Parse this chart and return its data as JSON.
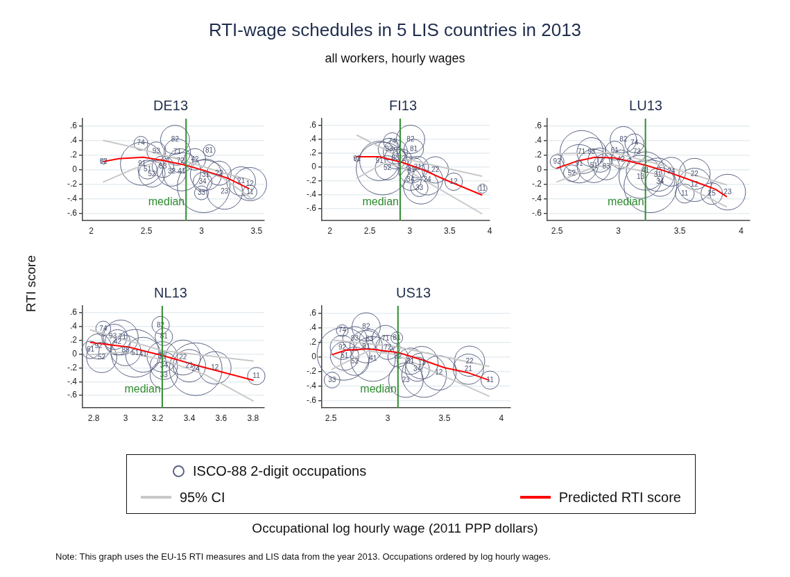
{
  "chart_data": [
    {
      "type": "bubble",
      "title": "DE13",
      "legend": "bottom",
      "grid": "y",
      "xlim": [
        1.92,
        3.57
      ],
      "xticks": [
        2,
        2.5,
        3,
        3.5
      ],
      "ylim": [
        -0.7,
        0.7
      ],
      "yticks": [
        {
          "value": -0.6,
          "label": "-.6"
        },
        {
          "value": -0.4,
          "label": "-.4"
        },
        {
          "value": -0.2,
          "label": "-.2"
        },
        {
          "value": 0,
          "label": "0"
        },
        {
          "value": 0.2,
          "label": ".2"
        },
        {
          "value": 0.4,
          "label": ".4"
        },
        {
          "value": 0.6,
          "label": ".6"
        }
      ],
      "ref_lines": [
        {
          "axis": "x",
          "value": 2.86,
          "label": "median",
          "color": "#2e8b2e"
        }
      ],
      "annotations": [
        {
          "text": "92",
          "x": 2.11,
          "y": 0.11
        },
        {
          "text": "74",
          "x": 2.45,
          "y": 0.36
        },
        {
          "text": "82",
          "x": 2.76,
          "y": 0.41
        },
        {
          "text": "93",
          "x": 2.59,
          "y": 0.25
        },
        {
          "text": "71",
          "x": 2.78,
          "y": 0.24
        },
        {
          "text": "81",
          "x": 3.07,
          "y": 0.26
        },
        {
          "text": "72",
          "x": 2.81,
          "y": 0.12
        },
        {
          "text": "42",
          "x": 2.94,
          "y": 0.14
        },
        {
          "text": "91",
          "x": 2.46,
          "y": 0.08
        },
        {
          "text": "51",
          "x": 2.51,
          "y": 0
        },
        {
          "text": "52",
          "x": 2.55,
          "y": -0.06
        },
        {
          "text": "83",
          "x": 2.65,
          "y": 0.04
        },
        {
          "text": "32",
          "x": 2.73,
          "y": -0.03
        },
        {
          "text": "41",
          "x": 2.82,
          "y": -0.03
        },
        {
          "text": "31",
          "x": 3.04,
          "y": -0.07
        },
        {
          "text": "34",
          "x": 3.01,
          "y": -0.17
        },
        {
          "text": "33",
          "x": 3.0,
          "y": -0.32
        },
        {
          "text": "22",
          "x": 3.16,
          "y": -0.05
        },
        {
          "text": "21",
          "x": 3.36,
          "y": -0.16
        },
        {
          "text": "23",
          "x": 3.21,
          "y": -0.3
        },
        {
          "text": "12",
          "x": 3.44,
          "y": -0.2
        },
        {
          "text": "11",
          "x": 3.44,
          "y": -0.31
        }
      ],
      "series": [
        {
          "type": "bubble",
          "name": "ISCO-88 2-digit occupations",
          "color": "#5b6382",
          "x": [
            2.11,
            2.45,
            2.76,
            2.59,
            2.78,
            3.07,
            2.81,
            2.94,
            2.46,
            2.51,
            2.55,
            2.65,
            2.73,
            2.82,
            3.04,
            3.01,
            3.0,
            3.16,
            3.36,
            3.21,
            3.44,
            3.44,
            3.02
          ],
          "values": [
            0.11,
            0.36,
            0.41,
            0.25,
            0.24,
            0.26,
            0.12,
            0.14,
            0.08,
            0,
            -0.06,
            0.04,
            -0.03,
            -0.03,
            -0.07,
            -0.17,
            -0.32,
            -0.05,
            -0.16,
            -0.3,
            -0.2,
            -0.31,
            -0.23
          ],
          "sizes": [
            0.01,
            0.07,
            0.3,
            0.13,
            0.25,
            0.05,
            0.21,
            0.17,
            0.67,
            0.13,
            0.25,
            0.17,
            0.3,
            0.53,
            0.35,
            0.13,
            0.07,
            0.21,
            0.3,
            0.46,
            0.4,
            0.07,
            1
          ]
        },
        {
          "type": "line",
          "name": "95% CI",
          "color": "#c8c8c8",
          "x": [
            2.11,
            2.4,
            2.65,
            2.9,
            3.2,
            3.44
          ],
          "values": [
            -0.17,
            0.02,
            0.12,
            0.05,
            -0.12,
            -0.38
          ]
        },
        {
          "type": "line",
          "color": "#c8c8c8",
          "x": [
            2.11,
            2.4,
            2.7,
            3.0,
            3.2,
            3.44
          ],
          "values": [
            0.4,
            0.3,
            0.18,
            0.05,
            -0.05,
            -0.14
          ]
        },
        {
          "type": "line",
          "name": "Predicted RTI score",
          "color": "#ff0000",
          "x": [
            2.11,
            2.25,
            2.47,
            2.63,
            2.83,
            3.04,
            3.24,
            3.43
          ],
          "values": [
            0.11,
            0.15,
            0.17,
            0.13,
            0.07,
            -0.02,
            -0.12,
            -0.26
          ]
        }
      ]
    },
    {
      "type": "bubble",
      "title": "FI13",
      "grid": "y",
      "xlim": [
        1.9,
        4.0
      ],
      "xticks": [
        2,
        2.5,
        3,
        3.5,
        4
      ],
      "ylim": [
        -0.77,
        0.7
      ],
      "yticks": [
        {
          "value": -0.6,
          "label": "-.6"
        },
        {
          "value": -0.4,
          "label": "-.4"
        },
        {
          "value": -0.2,
          "label": "-.2"
        },
        {
          "value": 0,
          "label": "0"
        },
        {
          "value": 0.2,
          "label": ".2"
        },
        {
          "value": 0.4,
          "label": ".4"
        },
        {
          "value": 0.6,
          "label": ".6"
        }
      ],
      "ref_lines": [
        {
          "axis": "x",
          "value": 2.88,
          "label": "median",
          "color": "#2e8b2e"
        }
      ],
      "annotations": [
        {
          "text": "92",
          "x": 2.34,
          "y": 0.12
        },
        {
          "text": "74",
          "x": 2.78,
          "y": 0.37
        },
        {
          "text": "82",
          "x": 3.01,
          "y": 0.4
        },
        {
          "text": "81",
          "x": 3.05,
          "y": 0.26
        },
        {
          "text": "93",
          "x": 2.74,
          "y": 0.26
        },
        {
          "text": "71",
          "x": 2.82,
          "y": 0.22
        },
        {
          "text": "91",
          "x": 2.62,
          "y": 0.09
        },
        {
          "text": "52",
          "x": 2.72,
          "y": -0.01
        },
        {
          "text": "83",
          "x": 2.82,
          "y": 0.13
        },
        {
          "text": "72",
          "x": 2.9,
          "y": 0.12
        },
        {
          "text": "41",
          "x": 3.02,
          "y": -0.04
        },
        {
          "text": "31",
          "x": 3.1,
          "y": 0
        },
        {
          "text": "34",
          "x": 3.01,
          "y": -0.18
        },
        {
          "text": "33",
          "x": 3.12,
          "y": -0.3
        },
        {
          "text": "22",
          "x": 3.32,
          "y": -0.04
        },
        {
          "text": "24",
          "x": 3.22,
          "y": -0.18
        },
        {
          "text": "12",
          "x": 3.55,
          "y": -0.21
        },
        {
          "text": "11",
          "x": 3.91,
          "y": -0.31
        }
      ],
      "series": [
        {
          "type": "bubble",
          "color": "#5b6382",
          "x": [
            2.34,
            2.78,
            3.01,
            3.05,
            2.74,
            2.82,
            2.62,
            2.72,
            2.82,
            2.66,
            2.9,
            3.02,
            3.1,
            3.01,
            3.12,
            3.32,
            3.22,
            3.14,
            3.55,
            3.91
          ],
          "values": [
            0.12,
            0.37,
            0.4,
            0.26,
            0.26,
            0.22,
            0.09,
            -0.01,
            0.13,
            -0.02,
            0.12,
            -0.04,
            0,
            -0.18,
            -0.3,
            -0.04,
            -0.18,
            -0.28,
            -0.21,
            -0.31
          ],
          "sizes": [
            0.01,
            0.11,
            0.29,
            0.14,
            0.17,
            0.21,
            0.56,
            0.21,
            0.17,
            1,
            0.14,
            0.25,
            0.17,
            0.17,
            0.11,
            0.25,
            0.34,
            0.44,
            0.11,
            0.03
          ]
        },
        {
          "type": "line",
          "color": "#c8c8c8",
          "x": [
            2.34,
            2.68,
            2.9,
            3.9
          ],
          "values": [
            -0.16,
            0.06,
            0,
            -0.67
          ]
        },
        {
          "type": "line",
          "color": "#c8c8c8",
          "x": [
            2.34,
            2.9,
            3.9
          ],
          "values": [
            0.46,
            0.13,
            -0.13
          ]
        },
        {
          "type": "line",
          "color": "#ff0000",
          "x": [
            2.34,
            2.62,
            2.9,
            3.17,
            3.44,
            3.9
          ],
          "values": [
            0.15,
            0.15,
            0.07,
            -0.04,
            -0.18,
            -0.4
          ]
        }
      ]
    },
    {
      "type": "bubble",
      "title": "LU13",
      "grid": "y",
      "xlim": [
        2.42,
        4.07
      ],
      "xticks": [
        2.5,
        3,
        3.5,
        4
      ],
      "ylim": [
        -0.7,
        0.7
      ],
      "yticks": [
        {
          "value": -0.6,
          "label": "-.6"
        },
        {
          "value": -0.4,
          "label": "-.4"
        },
        {
          "value": -0.2,
          "label": "-.2"
        },
        {
          "value": 0,
          "label": "0"
        },
        {
          "value": 0.2,
          "label": ".2"
        },
        {
          "value": 0.4,
          "label": ".4"
        },
        {
          "value": 0.6,
          "label": ".6"
        }
      ],
      "ref_lines": [
        {
          "axis": "x",
          "value": 3.22,
          "label": "median",
          "color": "#2e8b2e"
        }
      ],
      "annotations": [
        {
          "text": "92",
          "x": 2.5,
          "y": 0.11
        },
        {
          "text": "52",
          "x": 2.62,
          "y": -0.05
        },
        {
          "text": "91",
          "x": 2.68,
          "y": 0.08
        },
        {
          "text": "71",
          "x": 2.7,
          "y": 0.24
        },
        {
          "text": "93",
          "x": 2.78,
          "y": 0.24
        },
        {
          "text": "51",
          "x": 2.8,
          "y": 0.05
        },
        {
          "text": "83",
          "x": 2.9,
          "y": 0.04
        },
        {
          "text": "72",
          "x": 2.85,
          "y": 0.13
        },
        {
          "text": "61",
          "x": 2.97,
          "y": 0.26
        },
        {
          "text": "42",
          "x": 3.02,
          "y": 0.14
        },
        {
          "text": "82",
          "x": 3.04,
          "y": 0.41
        },
        {
          "text": "74",
          "x": 3.13,
          "y": 0.36
        },
        {
          "text": "73",
          "x": 3.15,
          "y": 0.24
        },
        {
          "text": "13",
          "x": 3.18,
          "y": -0.1
        },
        {
          "text": "41",
          "x": 3.22,
          "y": -0.02
        },
        {
          "text": "31",
          "x": 3.32,
          "y": -0.07
        },
        {
          "text": "34",
          "x": 3.34,
          "y": -0.17
        },
        {
          "text": "24",
          "x": 3.43,
          "y": -0.03
        },
        {
          "text": "22",
          "x": 3.62,
          "y": -0.06
        },
        {
          "text": "12",
          "x": 3.62,
          "y": -0.21
        },
        {
          "text": "11",
          "x": 3.54,
          "y": -0.33
        },
        {
          "text": "25",
          "x": 3.76,
          "y": -0.33
        },
        {
          "text": "23",
          "x": 3.89,
          "y": -0.31
        }
      ],
      "series": [
        {
          "type": "bubble",
          "color": "#5b6382",
          "x": [
            2.5,
            2.62,
            2.68,
            2.7,
            2.78,
            2.8,
            2.9,
            2.85,
            2.97,
            3.02,
            3.04,
            3.13,
            3.15,
            3.18,
            3.22,
            3.32,
            3.34,
            3.43,
            3.26,
            3.62,
            3.62,
            3.54,
            3.76,
            3.89
          ],
          "values": [
            0.11,
            -0.05,
            0.08,
            0.24,
            0.24,
            0.05,
            0.04,
            0.13,
            0.26,
            0.14,
            0.41,
            0.36,
            0.24,
            -0.1,
            -0.02,
            -0.07,
            -0.17,
            -0.03,
            -0.23,
            -0.06,
            -0.21,
            -0.33,
            -0.33,
            -0.31
          ],
          "sizes": [
            0.07,
            0.1,
            0.53,
            0.67,
            0.3,
            0.4,
            0.25,
            0.21,
            0.13,
            0.13,
            0.25,
            0.13,
            0.13,
            0.67,
            0.53,
            0.4,
            0.3,
            0.3,
            1,
            0.35,
            0.4,
            0.13,
            0.17,
            0.46
          ]
        },
        {
          "type": "line",
          "color": "#c8c8c8",
          "x": [
            2.5,
            2.81,
            2.97,
            3.38,
            3.88
          ],
          "values": [
            -0.17,
            0.04,
            0.06,
            -0.09,
            -0.51
          ]
        },
        {
          "type": "line",
          "color": "#c8c8c8",
          "x": [
            2.5,
            2.97,
            3.38,
            3.88
          ],
          "values": [
            0.22,
            0.23,
            0.05,
            -0.21
          ]
        },
        {
          "type": "line",
          "color": "#ff0000",
          "x": [
            2.5,
            2.67,
            2.81,
            2.97,
            3.1,
            3.22,
            3.38,
            3.58,
            3.79,
            3.88
          ],
          "values": [
            0.02,
            0.12,
            0.17,
            0.16,
            0.11,
            0.06,
            -0.02,
            -0.14,
            -0.27,
            -0.37
          ]
        }
      ]
    },
    {
      "type": "bubble",
      "title": "NL13",
      "grid": "y",
      "xlim": [
        2.73,
        3.87
      ],
      "xticks": [
        2.8,
        3,
        3.2,
        3.4,
        3.6,
        3.8
      ],
      "ylim": [
        -0.78,
        0.7
      ],
      "yticks": [
        {
          "value": -0.6,
          "label": "-.6"
        },
        {
          "value": -0.4,
          "label": "-.4"
        },
        {
          "value": -0.2,
          "label": "-.2"
        },
        {
          "value": 0,
          "label": "0"
        },
        {
          "value": 0.2,
          "label": ".2"
        },
        {
          "value": 0.4,
          "label": ".4"
        },
        {
          "value": 0.6,
          "label": ".6"
        }
      ],
      "ref_lines": [
        {
          "axis": "x",
          "value": 3.23,
          "label": "median",
          "color": "#2e8b2e"
        }
      ],
      "annotations": [
        {
          "text": "61",
          "x": 2.78,
          "y": 0.06
        },
        {
          "text": "74",
          "x": 2.86,
          "y": 0.37
        },
        {
          "text": "92",
          "x": 2.83,
          "y": 0.11
        },
        {
          "text": "52",
          "x": 2.85,
          "y": -0.05
        },
        {
          "text": "93",
          "x": 2.92,
          "y": 0.25
        },
        {
          "text": "71",
          "x": 2.98,
          "y": 0.24
        },
        {
          "text": "42",
          "x": 2.95,
          "y": 0.17
        },
        {
          "text": "83",
          "x": 3.0,
          "y": 0.05
        },
        {
          "text": "51",
          "x": 3.06,
          "y": 0.01
        },
        {
          "text": "41",
          "x": 3.11,
          "y": -0.01
        },
        {
          "text": "82",
          "x": 3.22,
          "y": 0.42
        },
        {
          "text": "81",
          "x": 3.24,
          "y": 0.25
        },
        {
          "text": "31",
          "x": 3.23,
          "y": -0.04
        },
        {
          "text": "34",
          "x": 3.24,
          "y": -0.17
        },
        {
          "text": "33",
          "x": 3.24,
          "y": -0.31
        },
        {
          "text": "22",
          "x": 3.36,
          "y": -0.05
        },
        {
          "text": "21",
          "x": 3.4,
          "y": -0.17
        },
        {
          "text": "24",
          "x": 3.44,
          "y": -0.22
        },
        {
          "text": "12",
          "x": 3.56,
          "y": -0.2
        },
        {
          "text": "11",
          "x": 3.82,
          "y": -0.32
        }
      ],
      "series": [
        {
          "type": "bubble",
          "color": "#5b6382",
          "x": [
            2.78,
            2.86,
            2.83,
            2.85,
            2.93,
            2.97,
            2.95,
            3.0,
            3.06,
            3.11,
            3.22,
            3.24,
            3.23,
            3.24,
            3.24,
            3.36,
            3.4,
            3.44,
            3.56,
            3.82
          ],
          "values": [
            0.06,
            0.37,
            0.11,
            -0.05,
            0.25,
            0.24,
            0.17,
            0.05,
            0.01,
            -0.01,
            0.42,
            0.25,
            -0.04,
            -0.17,
            -0.31,
            -0.05,
            -0.17,
            -0.22,
            -0.2,
            -0.32
          ],
          "sizes": [
            0.11,
            0.08,
            0.23,
            0.33,
            0.23,
            0.44,
            0.23,
            0.33,
            0.82,
            0.44,
            0.11,
            0.11,
            0.33,
            0.27,
            0.27,
            0.44,
            0.38,
            1,
            0.38,
            0.11
          ]
        },
        {
          "type": "line",
          "color": "#c8c8c8",
          "x": [
            2.78,
            3.0,
            3.23,
            3.5,
            3.8
          ],
          "values": [
            -0.01,
            0.03,
            -0.08,
            -0.3,
            -0.68
          ]
        },
        {
          "type": "line",
          "color": "#c8c8c8",
          "x": [
            2.78,
            3.23,
            3.8
          ],
          "values": [
            0.35,
            0.05,
            -0.1
          ]
        },
        {
          "type": "line",
          "color": "#ff0000",
          "x": [
            2.78,
            3.02,
            3.23,
            3.44,
            3.8
          ],
          "values": [
            0.17,
            0.1,
            -0.02,
            -0.16,
            -0.38
          ]
        }
      ]
    },
    {
      "type": "bubble",
      "title": "US13",
      "grid": "y",
      "xlim": [
        2.42,
        4.08
      ],
      "xticks": [
        2.5,
        3,
        3.5,
        4
      ],
      "ylim": [
        -0.7,
        0.7
      ],
      "yticks": [
        {
          "value": -0.6,
          "label": "-.6"
        },
        {
          "value": -0.4,
          "label": "-.4"
        },
        {
          "value": -0.2,
          "label": "-.2"
        },
        {
          "value": 0,
          "label": "0"
        },
        {
          "value": 0.2,
          "label": ".2"
        },
        {
          "value": 0.4,
          "label": ".4"
        },
        {
          "value": 0.6,
          "label": ".6"
        }
      ],
      "ref_lines": [
        {
          "axis": "x",
          "value": 3.09,
          "label": "median",
          "color": "#2e8b2e"
        }
      ],
      "annotations": [
        {
          "text": "33",
          "x": 2.51,
          "y": -0.32
        },
        {
          "text": "74",
          "x": 2.6,
          "y": 0.36
        },
        {
          "text": "92",
          "x": 2.6,
          "y": 0.13
        },
        {
          "text": "51",
          "x": 2.62,
          "y": 0.01
        },
        {
          "text": "52",
          "x": 2.71,
          "y": -0.06
        },
        {
          "text": "93",
          "x": 2.71,
          "y": 0.25
        },
        {
          "text": "82",
          "x": 2.81,
          "y": 0.41
        },
        {
          "text": "83",
          "x": 2.84,
          "y": 0.24
        },
        {
          "text": "91",
          "x": 2.81,
          "y": 0.14
        },
        {
          "text": "41",
          "x": 2.87,
          "y": -0.03
        },
        {
          "text": "71",
          "x": 2.98,
          "y": 0.25
        },
        {
          "text": "81",
          "x": 3.08,
          "y": 0.26
        },
        {
          "text": "72",
          "x": 3.0,
          "y": 0.13
        },
        {
          "text": "32",
          "x": 3.09,
          "y": 0
        },
        {
          "text": "31",
          "x": 3.2,
          "y": -0.06
        },
        {
          "text": "13",
          "x": 3.3,
          "y": -0.08
        },
        {
          "text": "34",
          "x": 3.26,
          "y": -0.17
        },
        {
          "text": "23",
          "x": 3.16,
          "y": -0.32
        },
        {
          "text": "12",
          "x": 3.45,
          "y": -0.22
        },
        {
          "text": "22",
          "x": 3.72,
          "y": -0.06
        },
        {
          "text": "21",
          "x": 3.71,
          "y": -0.17
        },
        {
          "text": "11",
          "x": 3.9,
          "y": -0.32
        }
      ],
      "series": [
        {
          "type": "bubble",
          "color": "#5b6382",
          "x": [
            2.51,
            2.6,
            2.61,
            2.6,
            2.62,
            2.71,
            2.71,
            2.81,
            2.84,
            2.81,
            2.87,
            2.98,
            3.08,
            3.0,
            3.09,
            3.2,
            3.3,
            3.26,
            3.16,
            3.32,
            3.45,
            3.72,
            3.71,
            3.9
          ],
          "values": [
            -0.32,
            0.36,
            0.04,
            0.13,
            0.01,
            -0.06,
            0.25,
            0.41,
            0.24,
            0.14,
            -0.03,
            0.25,
            0.26,
            0.13,
            0,
            -0.06,
            -0.08,
            -0.17,
            -0.32,
            -0.25,
            -0.22,
            -0.06,
            -0.17,
            -0.32
          ],
          "sizes": [
            0.09,
            0.05,
            1,
            0.21,
            0.29,
            0.29,
            0.21,
            0.29,
            0.15,
            0.38,
            0.72,
            0.25,
            0.05,
            0.21,
            0.15,
            0.25,
            0.38,
            0.21,
            0.43,
            0.72,
            0.43,
            0.33,
            0.33,
            0.12
          ]
        },
        {
          "type": "line",
          "color": "#c8c8c8",
          "x": [
            2.51,
            2.83,
            3.07,
            3.89
          ],
          "values": [
            -0.17,
            0.08,
            0.03,
            -0.54
          ]
        },
        {
          "type": "line",
          "color": "#c8c8c8",
          "x": [
            2.51,
            3.07,
            3.89
          ],
          "values": [
            0.23,
            0.14,
            -0.13
          ]
        },
        {
          "type": "line",
          "color": "#ff0000",
          "x": [
            2.51,
            2.63,
            2.83,
            3.09,
            3.3,
            3.5,
            3.71,
            3.89
          ],
          "values": [
            0.03,
            0.09,
            0.11,
            0.06,
            -0.04,
            -0.15,
            -0.22,
            -0.32
          ]
        }
      ]
    },
    {
      "type": "other",
      "title": "RTI-wage schedules in 5 LIS countries in 2013",
      "subtitle": "all workers, hourly wages",
      "xlabel": "Occupational log hourly wage (2011 PPP dollars)",
      "ylabel": "RTI score",
      "annotations": [
        "Note: This graph uses the EU-15 RTI measures and LIS data from the year 2013. Occupations ordered by log hourly wages."
      ]
    }
  ]
}
